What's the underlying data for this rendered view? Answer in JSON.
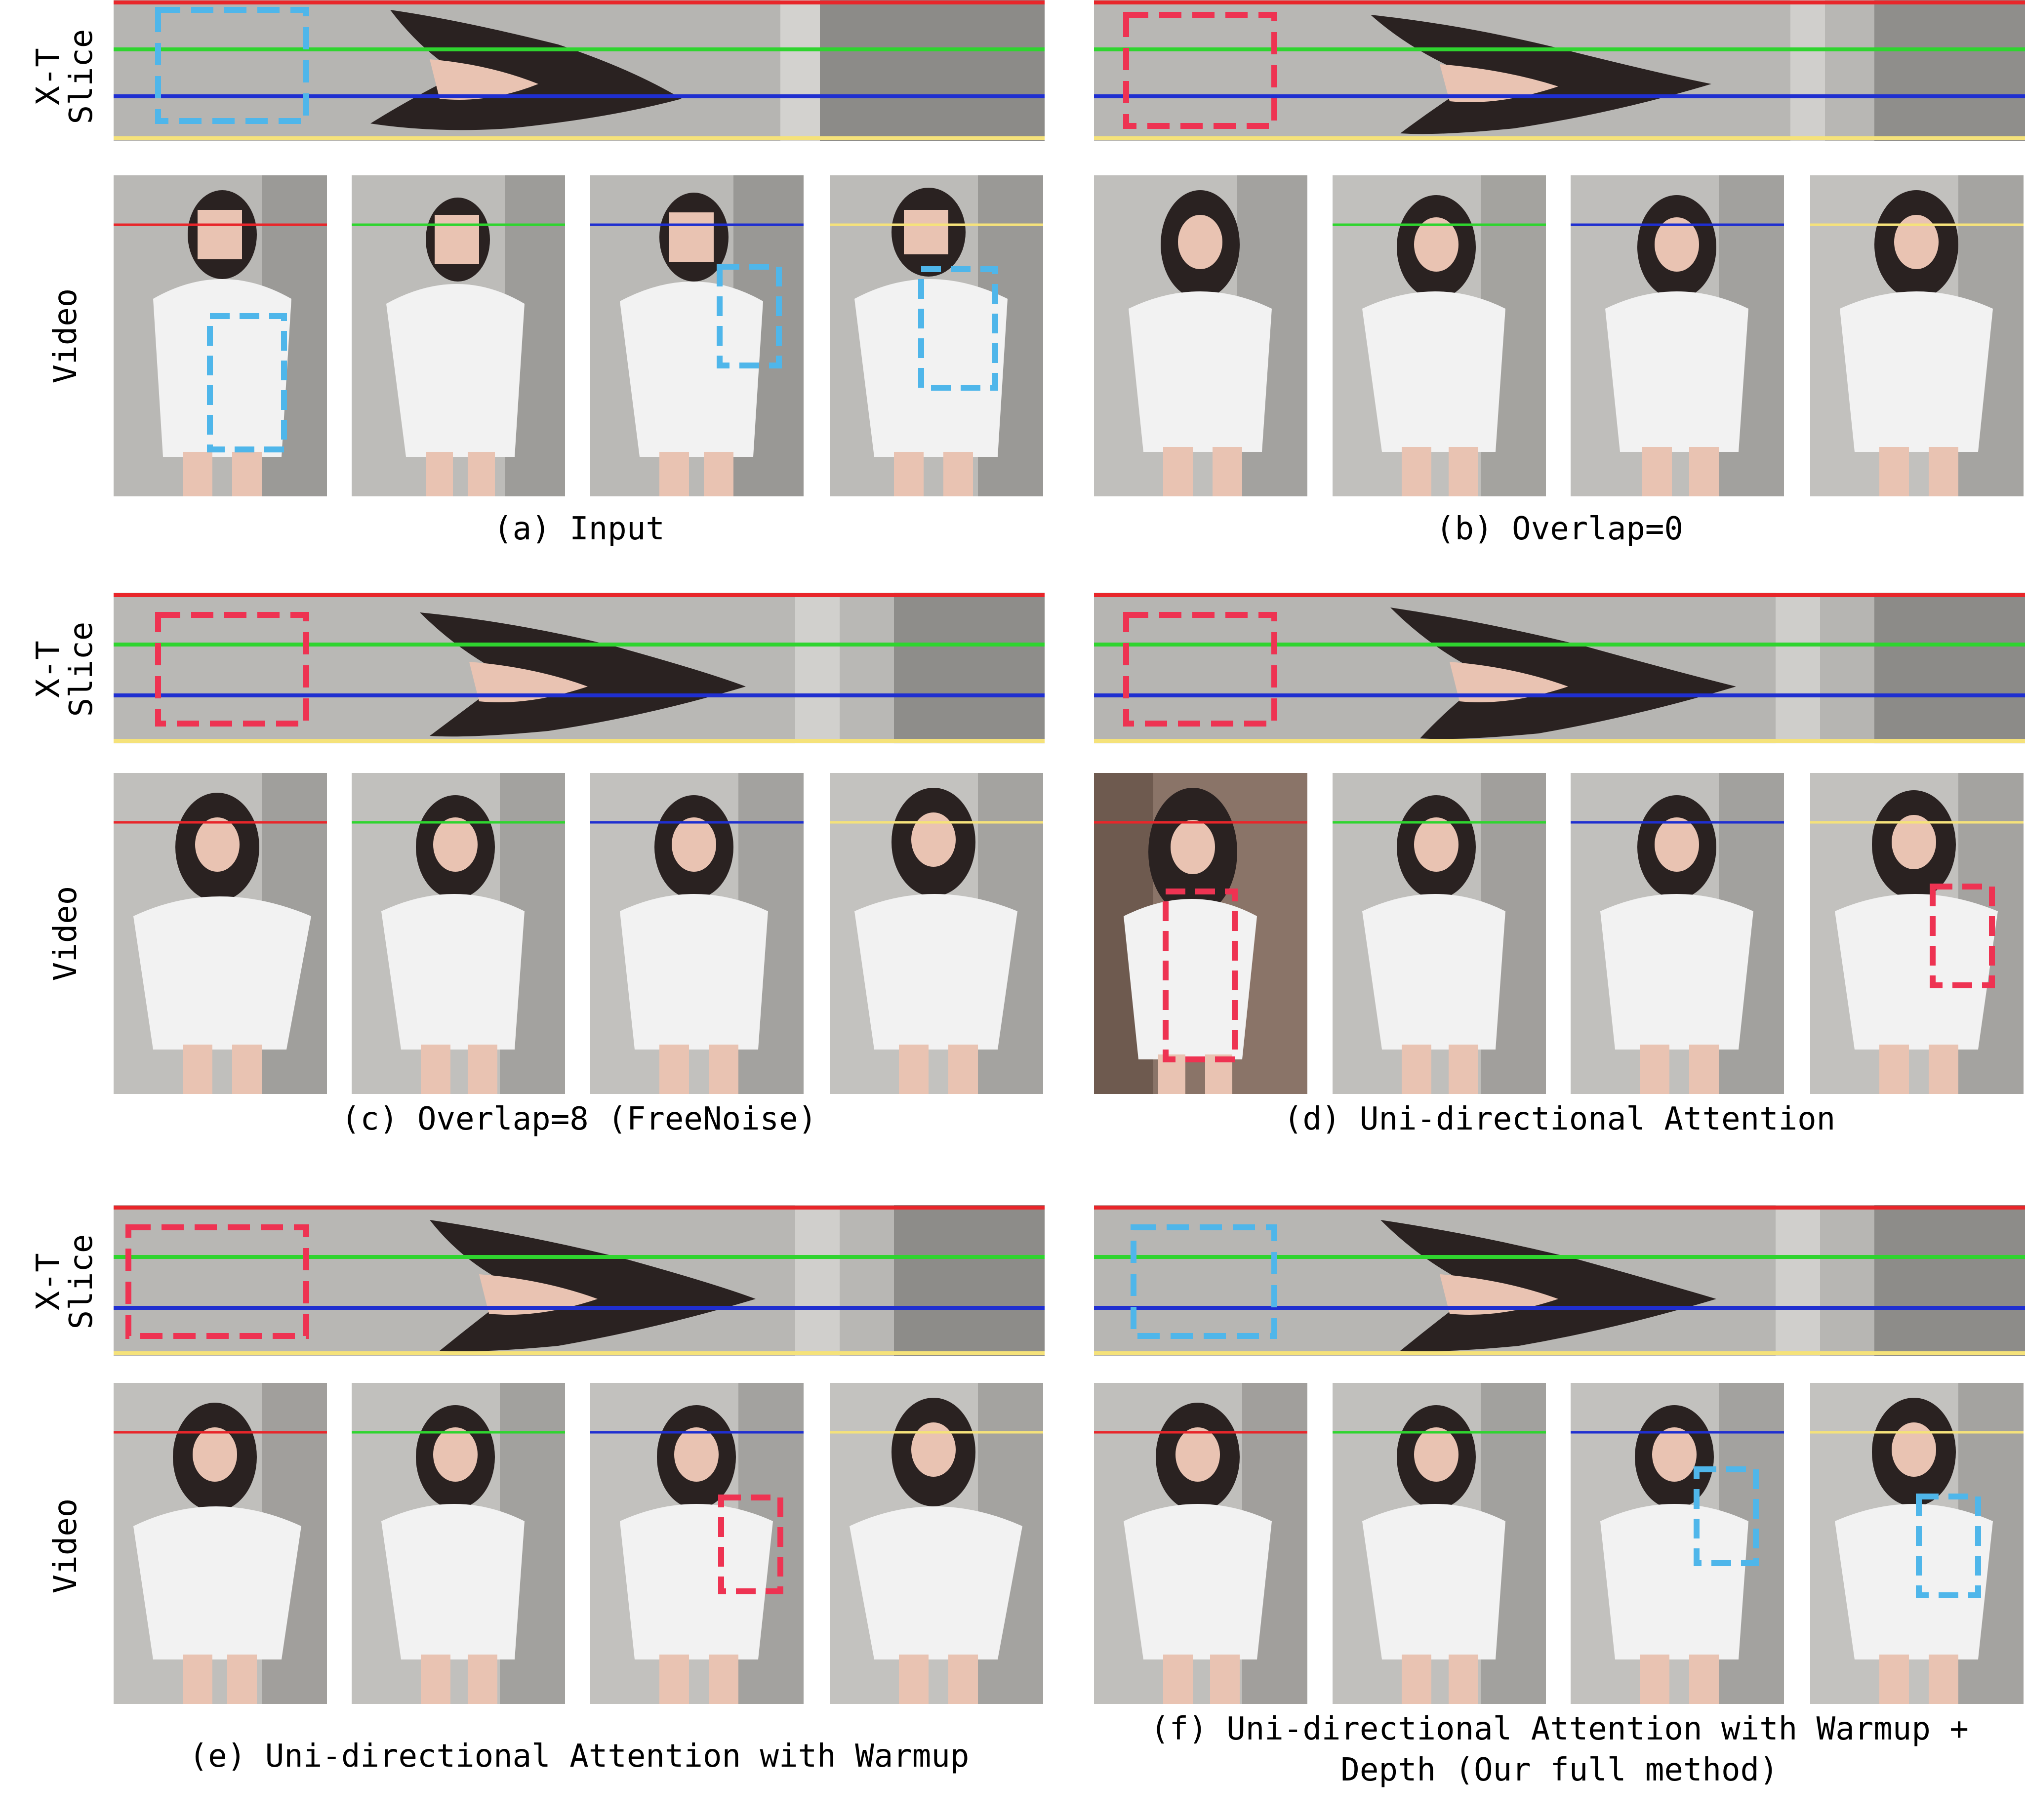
{
  "row_labels": {
    "xt": "X-T\nSlice",
    "video": "Video"
  },
  "colors": {
    "line_red": "#e8262a",
    "line_green": "#2fd42f",
    "line_blue": "#1f2fd0",
    "line_yellow": "#f5e27a",
    "box_blue": "#4fb6ea",
    "box_red": "#ee3352",
    "wall": "#b9b8b5",
    "shirt": "#f2f2f2",
    "hair": "#2a2221",
    "skin": "#e9c3b2"
  },
  "panels": [
    {
      "id": "a",
      "caption": "(a) Input",
      "box_color": "blue"
    },
    {
      "id": "b",
      "caption": "(b) Overlap=0",
      "box_color": "red"
    },
    {
      "id": "c",
      "caption": "(c) Overlap=8 (FreeNoise)",
      "box_color": "red"
    },
    {
      "id": "d",
      "caption": "(d) Uni-directional Attention",
      "box_color": "red"
    },
    {
      "id": "e",
      "caption": "(e) Uni-directional Attention with Warmup",
      "box_color": "red"
    },
    {
      "id": "f",
      "caption": "(f) Uni-directional Attention with Warmup +\nDepth (Our full method)",
      "box_color": "blue"
    }
  ]
}
